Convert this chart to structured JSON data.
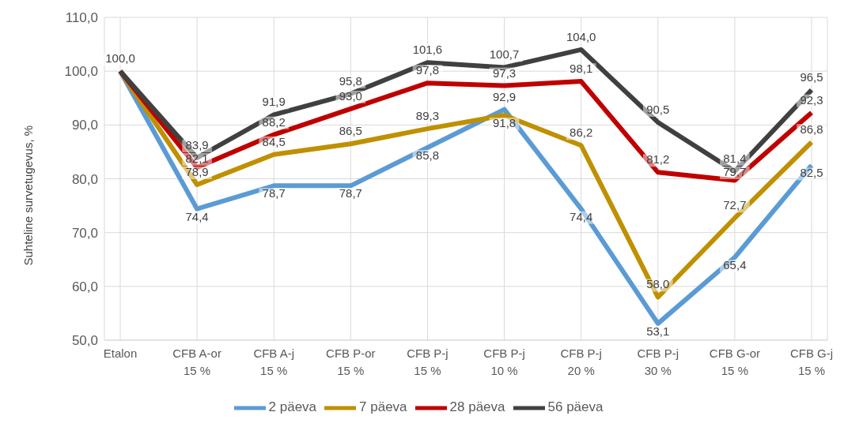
{
  "chart_data": {
    "type": "line",
    "ylabel": "Suhteline survetugevus, %",
    "categories": [
      "Etalon",
      "CFB A-or\n15 %",
      "CFB A-j\n15 %",
      "CFB P-or\n15 %",
      "CFB P-j\n15 %",
      "CFB P-j\n10 %",
      "CFB P-j\n20 %",
      "CFB P-j\n30 %",
      "CFB G-or\n15 %",
      "CFB G-j\n15 %"
    ],
    "series": [
      {
        "name": "2 päeva",
        "color": "#5b9bd5",
        "values": [
          100.0,
          74.4,
          78.7,
          78.7,
          85.8,
          92.9,
          74.4,
          53.1,
          65.4,
          82.5
        ],
        "value_labels": [
          null,
          "74,4",
          "78,7",
          "78,7",
          "85,8",
          "92,9",
          "74,4",
          "53,1",
          "65,4",
          "82,5"
        ]
      },
      {
        "name": "7 päeva",
        "color": "#bf9000",
        "values": [
          100.0,
          78.9,
          84.5,
          86.5,
          89.3,
          91.8,
          86.2,
          58.0,
          72.7,
          86.8
        ],
        "value_labels": [
          null,
          "78,9",
          "84,5",
          "86,5",
          "89,3",
          "91,8",
          "86,2",
          "58,0",
          "72,7",
          "86,8"
        ]
      },
      {
        "name": "28 päeva",
        "color": "#c00000",
        "values": [
          100.0,
          82.1,
          88.2,
          93.0,
          97.8,
          97.3,
          98.1,
          81.2,
          79.7,
          92.3
        ],
        "value_labels": [
          null,
          "82,1",
          "88,2",
          "93,0",
          "97,8",
          "97,3",
          "98,1",
          "81,2",
          "79,7",
          "92,3"
        ]
      },
      {
        "name": "56 päeva",
        "color": "#404040",
        "values": [
          100.0,
          83.9,
          91.9,
          95.8,
          101.6,
          100.7,
          104.0,
          90.5,
          81.4,
          96.5
        ],
        "value_labels": [
          "100,0",
          "83,9",
          "91,9",
          "95,8",
          "101,6",
          "100,7",
          "104,0",
          "90,5",
          "81,4",
          "96,5"
        ]
      }
    ],
    "ylim": [
      50,
      110
    ],
    "yticks": [
      {
        "value": 50,
        "label": "50,0"
      },
      {
        "value": 60,
        "label": "60,0"
      },
      {
        "value": 70,
        "label": "70,0"
      },
      {
        "value": 80,
        "label": "80,0"
      },
      {
        "value": 90,
        "label": "90,0"
      },
      {
        "value": 100,
        "label": "100,0"
      },
      {
        "value": 110,
        "label": "110,0"
      }
    ],
    "grid": true,
    "legend": "bottom",
    "marker": "none",
    "line_style": "solid"
  }
}
